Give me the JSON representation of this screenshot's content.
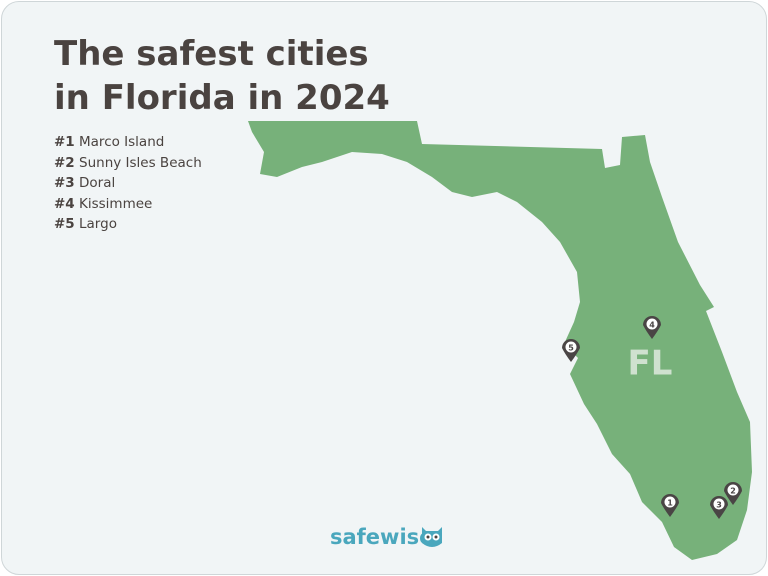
{
  "title": "The safest cities in Florida in 2024",
  "cities": [
    {
      "rank": "#1",
      "name": "Marco Island",
      "pin": "1"
    },
    {
      "rank": "#2",
      "name": "Sunny Isles Beach",
      "pin": "2"
    },
    {
      "rank": "#3",
      "name": "Doral",
      "pin": "3"
    },
    {
      "rank": "#4",
      "name": "Kissimmee",
      "pin": "4"
    },
    {
      "rank": "#5",
      "name": "Largo",
      "pin": "5"
    }
  ],
  "state_label": "FL",
  "logo": "safewise"
}
